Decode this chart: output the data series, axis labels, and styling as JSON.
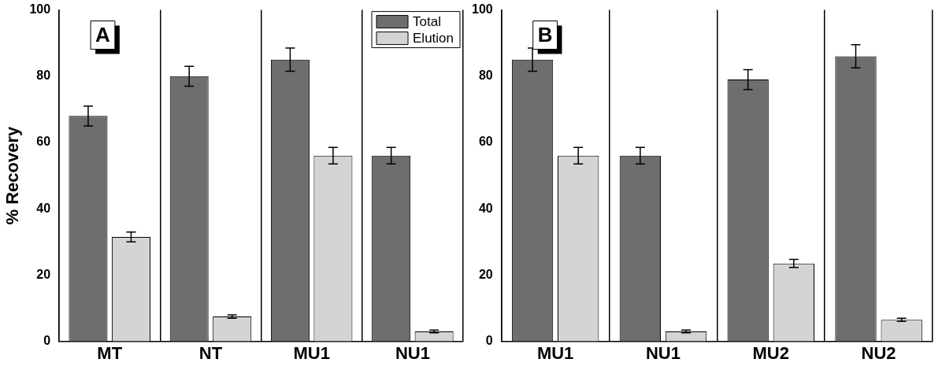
{
  "chart_data": [
    {
      "type": "bar",
      "categories": [
        "MT",
        "NT",
        "MU1",
        "NU1"
      ],
      "ylabel": "% Recovery",
      "ylim": [
        0,
        100
      ],
      "yticks": [
        0,
        20,
        40,
        60,
        80,
        100
      ],
      "grid": "x",
      "legend": "top right",
      "annotations": [
        "A"
      ],
      "series": [
        {
          "name": "Total",
          "color": "#6e6e6e",
          "values": [
            68,
            80,
            85,
            56
          ],
          "errors": [
            3,
            3,
            3.5,
            2.5
          ]
        },
        {
          "name": "Elution",
          "color": "#d4d4d4",
          "values": [
            31.5,
            7.5,
            56,
            3
          ],
          "errors": [
            1.5,
            0.5,
            2.5,
            0.4
          ]
        }
      ]
    },
    {
      "type": "bar",
      "categories": [
        "MU1",
        "NU1",
        "MU2",
        "NU2"
      ],
      "ylim": [
        0,
        100
      ],
      "yticks": [
        0,
        20,
        40,
        60,
        80,
        100
      ],
      "grid": "x",
      "annotations": [
        "B"
      ],
      "series": [
        {
          "color": "#6e6e6e",
          "values": [
            85,
            56,
            79,
            86
          ],
          "errors": [
            3.5,
            2.5,
            3,
            3.5
          ]
        },
        {
          "color": "#d4d4d4",
          "values": [
            56,
            3,
            23.5,
            6.5
          ],
          "errors": [
            2.5,
            0.4,
            1.2,
            0.5
          ]
        }
      ]
    }
  ]
}
